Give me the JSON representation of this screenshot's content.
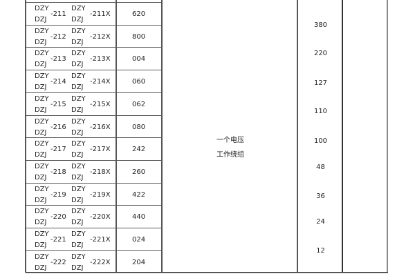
{
  "rows": [
    {
      "p1": "DZY",
      "p2": "DZJ",
      "num": "-211",
      "q1": "DZY",
      "q2": "DZJ",
      "numx": "-211X",
      "code": "620"
    },
    {
      "p1": "DZY",
      "p2": "DZJ",
      "num": "-212",
      "q1": "DZY",
      "q2": "DZJ",
      "numx": "-212X",
      "code": "800"
    },
    {
      "p1": "DZY",
      "p2": "DZJ",
      "num": "-213",
      "q1": "DZY",
      "q2": "DZJ",
      "numx": "-213X",
      "code": "004"
    },
    {
      "p1": "DZY",
      "p2": "DZJ",
      "num": "-214",
      "q1": "DZY",
      "q2": "DZJ",
      "numx": "-214X",
      "code": "060"
    },
    {
      "p1": "DZY",
      "p2": "DZJ",
      "num": "-215",
      "q1": "DZY",
      "q2": "DZJ",
      "numx": "-215X",
      "code": "062"
    },
    {
      "p1": "DZY",
      "p2": "DZJ",
      "num": "-216",
      "q1": "DZY",
      "q2": "DZJ",
      "numx": "-216X",
      "code": "080"
    },
    {
      "p1": "DZY",
      "p2": "DZJ",
      "num": "-217",
      "q1": "DZY",
      "q2": "DZJ",
      "numx": "-217X",
      "code": "242"
    },
    {
      "p1": "DZY",
      "p2": "DZJ",
      "num": "-218",
      "q1": "DZY",
      "q2": "DZJ",
      "numx": "-218X",
      "code": "260"
    },
    {
      "p1": "DZY",
      "p2": "DZJ",
      "num": "-219",
      "q1": "DZY",
      "q2": "DZJ",
      "numx": "-219X",
      "code": "422"
    },
    {
      "p1": "DZY",
      "p2": "DZJ",
      "num": "-220",
      "q1": "DZY",
      "q2": "DZJ",
      "numx": "-220X",
      "code": "440"
    },
    {
      "p1": "DZY",
      "p2": "DZJ",
      "num": "-221",
      "q1": "DZY",
      "q2": "DZJ",
      "numx": "-221X",
      "code": "024"
    },
    {
      "p1": "DZY",
      "p2": "DZJ",
      "num": "-222",
      "q1": "DZY",
      "q2": "DZJ",
      "numx": "-222X",
      "code": "204"
    }
  ],
  "description": {
    "line1": "一个电压",
    "line2": "工作绕组"
  },
  "voltages": [
    "380",
    "220",
    "127",
    "110",
    "100",
    "48",
    "36",
    "24",
    "12"
  ]
}
